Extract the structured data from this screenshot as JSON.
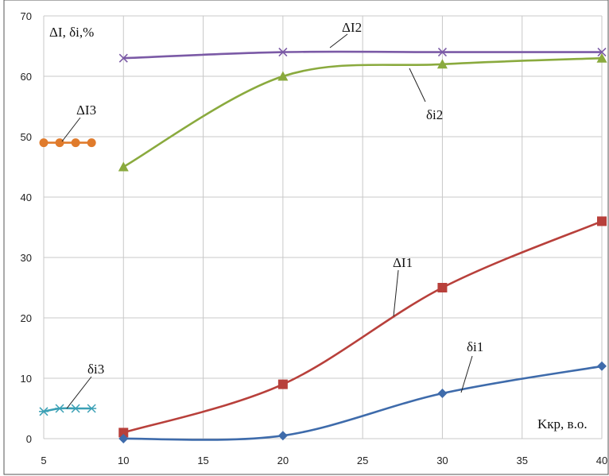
{
  "chart_data": {
    "type": "line",
    "xlim": [
      5,
      40
    ],
    "ylim": [
      0,
      70
    ],
    "x_ticks": [
      5,
      10,
      15,
      20,
      25,
      30,
      35,
      40
    ],
    "y_ticks": [
      0,
      10,
      20,
      30,
      40,
      50,
      60,
      70
    ],
    "grid": true,
    "legend": "none",
    "ylabel": "ΔI, δi,%",
    "xlabel": "Kкр, в.о.",
    "series": [
      {
        "name": "ΔI2",
        "color": "#7b5aa6",
        "marker": "x",
        "x": [
          10,
          20,
          30,
          40
        ],
        "y": [
          63,
          64,
          64,
          64
        ]
      },
      {
        "name": "δi2",
        "color": "#8aaa3e",
        "marker": "triangle",
        "x": [
          10,
          20,
          30,
          40
        ],
        "y": [
          45,
          60,
          62,
          63
        ]
      },
      {
        "name": "ΔI3",
        "color": "#e07b2c",
        "marker": "circle",
        "x": [
          5,
          6,
          7,
          8
        ],
        "y": [
          49,
          49,
          49,
          49
        ]
      },
      {
        "name": "ΔI1",
        "color": "#b8403b",
        "marker": "square",
        "x": [
          10,
          20,
          30,
          40
        ],
        "y": [
          1,
          9,
          25,
          36
        ]
      },
      {
        "name": "δi1",
        "color": "#3e6bab",
        "marker": "diamond",
        "x": [
          10,
          20,
          30,
          40
        ],
        "y": [
          0,
          0.5,
          7.5,
          12
        ]
      },
      {
        "name": "δi3",
        "color": "#3aa0b5",
        "marker": "asterisk",
        "x": [
          5,
          6,
          7,
          8
        ],
        "y": [
          4.5,
          5,
          5,
          5
        ]
      }
    ]
  }
}
